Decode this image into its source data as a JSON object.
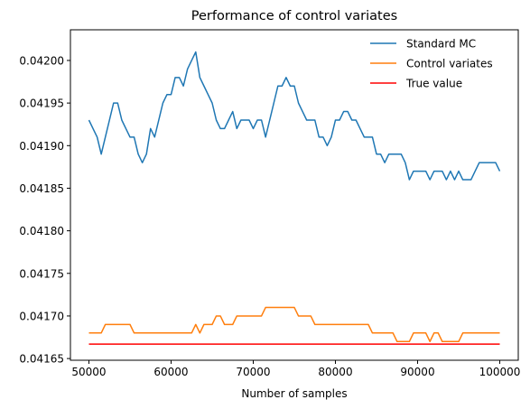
{
  "chart_data": {
    "type": "line",
    "title": "Performance of control variates",
    "xlabel": "Number of samples",
    "ylabel": "",
    "xlim": [
      47750,
      102250
    ],
    "ylim": [
      0.041648,
      0.042036
    ],
    "xticks": [
      50000,
      60000,
      70000,
      80000,
      90000,
      100000
    ],
    "xtick_labels": [
      "50000",
      "60000",
      "70000",
      "80000",
      "90000",
      "100000"
    ],
    "yticks": [
      0.04165,
      0.0417,
      0.04175,
      0.0418,
      0.04185,
      0.0419,
      0.04195,
      0.042
    ],
    "ytick_labels": [
      "0.04165",
      "0.04170",
      "0.04175",
      "0.04180",
      "0.04185",
      "0.04190",
      "0.04195",
      "0.04200"
    ],
    "grid": false,
    "legend_position": "upper-right",
    "series": [
      {
        "name": "Standard MC",
        "color": "#1f77b4",
        "x": [
          50000,
          50500,
          51000,
          51500,
          52000,
          52500,
          53000,
          53500,
          54000,
          54500,
          55000,
          55500,
          56000,
          56500,
          57000,
          57500,
          58000,
          58500,
          59000,
          59500,
          60000,
          60500,
          61000,
          61500,
          62000,
          62500,
          63000,
          63500,
          64000,
          64500,
          65000,
          65500,
          66000,
          66500,
          67000,
          67500,
          68000,
          68500,
          69000,
          69500,
          70000,
          70500,
          71000,
          71500,
          72000,
          72500,
          73000,
          73500,
          74000,
          74500,
          75000,
          75500,
          76000,
          76500,
          77000,
          77500,
          78000,
          78500,
          79000,
          79500,
          80000,
          80500,
          81000,
          81500,
          82000,
          82500,
          83000,
          83500,
          84000,
          84500,
          85000,
          85500,
          86000,
          86500,
          87000,
          87500,
          88000,
          88500,
          89000,
          89500,
          90000,
          90500,
          91000,
          91500,
          92000,
          92500,
          93000,
          93500,
          94000,
          94500,
          95000,
          95500,
          96000,
          96500,
          97000,
          97500,
          98000,
          98500,
          99000,
          99500,
          100000
        ],
        "y": [
          0.04193,
          0.04192,
          0.04191,
          0.04189,
          0.04191,
          0.04193,
          0.04195,
          0.04195,
          0.04193,
          0.04192,
          0.04191,
          0.04191,
          0.04189,
          0.04188,
          0.04189,
          0.04192,
          0.04191,
          0.04193,
          0.04195,
          0.04196,
          0.04196,
          0.04198,
          0.04198,
          0.04197,
          0.04199,
          0.042,
          0.04201,
          0.04198,
          0.04197,
          0.04196,
          0.04195,
          0.04193,
          0.04192,
          0.04192,
          0.04193,
          0.04194,
          0.04192,
          0.04193,
          0.04193,
          0.04193,
          0.04192,
          0.04193,
          0.04193,
          0.04191,
          0.04193,
          0.04195,
          0.04197,
          0.04197,
          0.04198,
          0.04197,
          0.04197,
          0.04195,
          0.04194,
          0.04193,
          0.04193,
          0.04193,
          0.04191,
          0.04191,
          0.0419,
          0.04191,
          0.04193,
          0.04193,
          0.04194,
          0.04194,
          0.04193,
          0.04193,
          0.04192,
          0.04191,
          0.04191,
          0.04191,
          0.04189,
          0.04189,
          0.04188,
          0.04189,
          0.04189,
          0.04189,
          0.04189,
          0.04188,
          0.04186,
          0.04187,
          0.04187,
          0.04187,
          0.04187,
          0.04186,
          0.04187,
          0.04187,
          0.04187,
          0.04186,
          0.04187,
          0.04186,
          0.04187,
          0.04186,
          0.04186,
          0.04186,
          0.04187,
          0.04188,
          0.04188,
          0.04188,
          0.04188,
          0.04188,
          0.04187
        ]
      },
      {
        "name": "Control variates",
        "color": "#ff7f0e",
        "x": [
          50000,
          50500,
          51000,
          51500,
          52000,
          52500,
          53000,
          53500,
          54000,
          54500,
          55000,
          55500,
          56000,
          56500,
          57000,
          57500,
          58000,
          58500,
          59000,
          59500,
          60000,
          60500,
          61000,
          61500,
          62000,
          62500,
          63000,
          63500,
          64000,
          64500,
          65000,
          65500,
          66000,
          66500,
          67000,
          67500,
          68000,
          68500,
          69000,
          69500,
          70000,
          70500,
          71000,
          71500,
          72000,
          72500,
          73000,
          73500,
          74000,
          74500,
          75000,
          75500,
          76000,
          76500,
          77000,
          77500,
          78000,
          78500,
          79000,
          79500,
          80000,
          80500,
          81000,
          81500,
          82000,
          82500,
          83000,
          83500,
          84000,
          84500,
          85000,
          85500,
          86000,
          86500,
          87000,
          87500,
          88000,
          88500,
          89000,
          89500,
          90000,
          90500,
          91000,
          91500,
          92000,
          92500,
          93000,
          93500,
          94000,
          94500,
          95000,
          95500,
          96000,
          96500,
          97000,
          97500,
          98000,
          98500,
          99000,
          99500,
          100000
        ],
        "y": [
          0.04168,
          0.04168,
          0.04168,
          0.04168,
          0.04169,
          0.04169,
          0.04169,
          0.04169,
          0.04169,
          0.04169,
          0.04169,
          0.04168,
          0.04168,
          0.04168,
          0.04168,
          0.04168,
          0.04168,
          0.04168,
          0.04168,
          0.04168,
          0.04168,
          0.04168,
          0.04168,
          0.04168,
          0.04168,
          0.04168,
          0.04169,
          0.04168,
          0.04169,
          0.04169,
          0.04169,
          0.0417,
          0.0417,
          0.04169,
          0.04169,
          0.04169,
          0.0417,
          0.0417,
          0.0417,
          0.0417,
          0.0417,
          0.0417,
          0.0417,
          0.04171,
          0.04171,
          0.04171,
          0.04171,
          0.04171,
          0.04171,
          0.04171,
          0.04171,
          0.0417,
          0.0417,
          0.0417,
          0.0417,
          0.04169,
          0.04169,
          0.04169,
          0.04169,
          0.04169,
          0.04169,
          0.04169,
          0.04169,
          0.04169,
          0.04169,
          0.04169,
          0.04169,
          0.04169,
          0.04169,
          0.04168,
          0.04168,
          0.04168,
          0.04168,
          0.04168,
          0.04168,
          0.04167,
          0.04167,
          0.04167,
          0.04167,
          0.04168,
          0.04168,
          0.04168,
          0.04168,
          0.04167,
          0.04168,
          0.04168,
          0.04167,
          0.04167,
          0.04167,
          0.04167,
          0.04167,
          0.04168,
          0.04168,
          0.04168,
          0.04168,
          0.04168,
          0.04168,
          0.04168,
          0.04168,
          0.04168,
          0.04168
        ]
      },
      {
        "name": "True value",
        "color": "#ff0000",
        "x": [
          50000,
          100000
        ],
        "y": [
          0.041667,
          0.041667
        ]
      }
    ]
  }
}
